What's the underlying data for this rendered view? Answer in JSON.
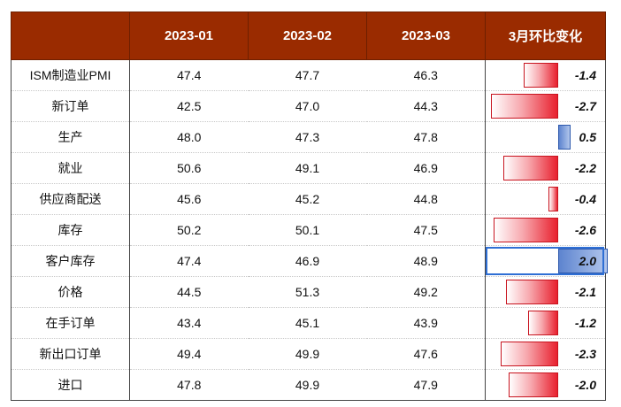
{
  "header": {
    "col_name": "",
    "months": [
      "2023-01",
      "2023-02",
      "2023-03"
    ],
    "change": "3月环比变化"
  },
  "rows": [
    {
      "name": "ISM制造业PMI",
      "values": [
        "47.4",
        "47.7",
        "46.3"
      ],
      "change": -1.4,
      "change_label": "-1.4"
    },
    {
      "name": "新订单",
      "values": [
        "42.5",
        "47.0",
        "44.3"
      ],
      "change": -2.7,
      "change_label": "-2.7"
    },
    {
      "name": "生产",
      "values": [
        "48.0",
        "47.3",
        "47.8"
      ],
      "change": 0.5,
      "change_label": "0.5"
    },
    {
      "name": "就业",
      "values": [
        "50.6",
        "49.1",
        "46.9"
      ],
      "change": -2.2,
      "change_label": "-2.2"
    },
    {
      "name": "供应商配送",
      "values": [
        "45.6",
        "45.2",
        "44.8"
      ],
      "change": -0.4,
      "change_label": "-0.4"
    },
    {
      "name": "库存",
      "values": [
        "50.2",
        "50.1",
        "47.5"
      ],
      "change": -2.6,
      "change_label": "-2.6"
    },
    {
      "name": "客户库存",
      "values": [
        "47.4",
        "46.9",
        "48.9"
      ],
      "change": 2.0,
      "change_label": "2.0",
      "selected": true
    },
    {
      "name": "价格",
      "values": [
        "44.5",
        "51.3",
        "49.2"
      ],
      "change": -2.1,
      "change_label": "-2.1"
    },
    {
      "name": "在手订单",
      "values": [
        "43.4",
        "45.1",
        "43.9"
      ],
      "change": -1.2,
      "change_label": "-1.2"
    },
    {
      "name": "新出口订单",
      "values": [
        "49.4",
        "49.9",
        "47.6"
      ],
      "change": -2.3,
      "change_label": "-2.3"
    },
    {
      "name": "进口",
      "values": [
        "47.8",
        "49.9",
        "47.9"
      ],
      "change": -2.0,
      "change_label": "-2.0"
    }
  ],
  "colors": {
    "header_bg": "#9a2b00",
    "neg_bar": "#e8202e",
    "pos_bar": "#5d84cf"
  }
}
